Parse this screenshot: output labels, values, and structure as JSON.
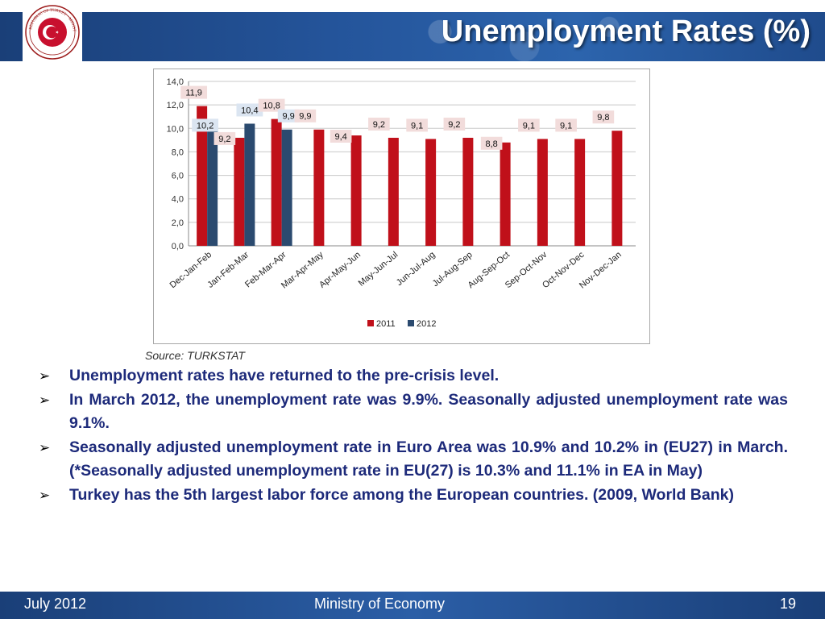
{
  "slide": {
    "title": "Unemployment Rates (%)",
    "source": "Source: TURKSTAT",
    "colors": {
      "header_blue": "#24549a",
      "bullet_text": "#1d2a7a",
      "series_2011": "#c0101a",
      "series_2012": "#2b4a6f"
    }
  },
  "logo": {
    "icon": "turkey-ministry-seal-icon",
    "arc_text": "REPUBLIC OF TURKEY · MINISTRY OF ECONOMY"
  },
  "chart_data": {
    "type": "bar",
    "categories": [
      "Dec-Jan-Feb",
      "Jan-Feb-Mar",
      "Feb-Mar-Apr",
      "Mar-Apr-May",
      "Apr-May-Jun",
      "May-Jun-Jul",
      "Jun-Jul-Aug",
      "Jul-Aug-Sep",
      "Aug-Sep-Oct",
      "Sep-Oct-Nov",
      "Oct-Nov-Dec",
      "Nov-Dec-Jan"
    ],
    "series": [
      {
        "name": "2011",
        "color": "#c0101a",
        "values": [
          11.9,
          9.2,
          10.8,
          9.9,
          9.4,
          9.2,
          9.1,
          9.2,
          8.8,
          9.1,
          9.1,
          9.8
        ],
        "labels": [
          "11,9",
          "9,2",
          "10,8",
          "9,9",
          "9,4",
          "9,2",
          "9,1",
          "9,2",
          "8,8",
          "9,1",
          "9,1",
          "9,8"
        ]
      },
      {
        "name": "2012",
        "color": "#2b4a6f",
        "values": [
          10.2,
          10.4,
          9.9,
          null,
          null,
          null,
          null,
          null,
          null,
          null,
          null,
          null
        ],
        "labels": [
          "10,2",
          "10,4",
          "9,9",
          "",
          "",
          "",
          "",
          "",
          "",
          "",
          "",
          ""
        ]
      }
    ],
    "yticks": [
      "0,0",
      "2,0",
      "4,0",
      "6,0",
      "8,0",
      "10,0",
      "12,0",
      "14,0"
    ],
    "ylim": [
      0,
      14
    ],
    "title": "",
    "xlabel": "",
    "ylabel": "",
    "grid": true,
    "legend": "bottom"
  },
  "bullets": [
    "Unemployment rates have returned to the pre-crisis level.",
    "In March 2012, the unemployment rate was 9.9%. Seasonally adjusted unemployment rate was 9.1%.",
    "Seasonally adjusted unemployment rate in Euro Area was 10.9% and 10.2% in (EU27) in March. (*Seasonally adjusted unemployment rate in EU(27) is 10.3% and 11.1% in EA in May)",
    "Turkey has the 5th largest labor force among the European countries. (2009, World Bank)"
  ],
  "bullet_icon": "arrow-bullet-icon",
  "footer": {
    "date": "July 2012",
    "org": "Ministry of Economy",
    "page": "19"
  }
}
